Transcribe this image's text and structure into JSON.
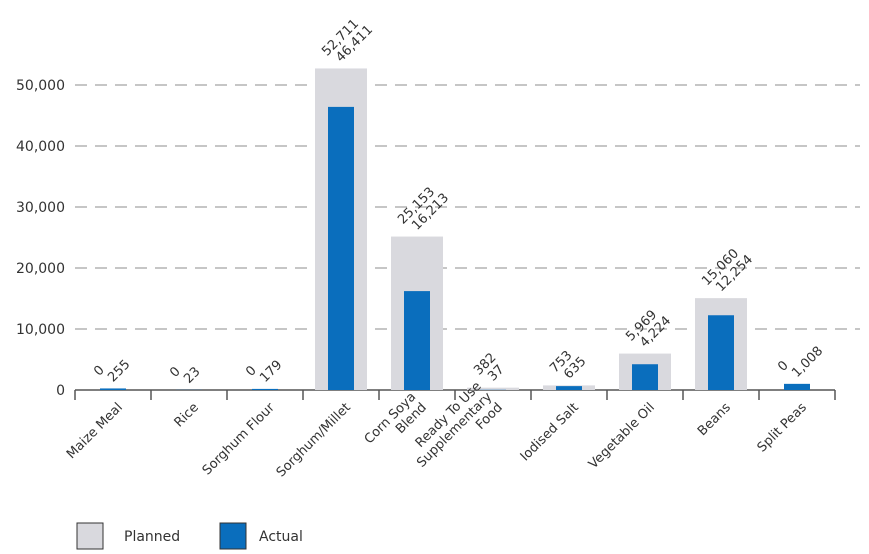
{
  "chart_data": {
    "type": "bar",
    "title": "",
    "xlabel": "",
    "ylabel": "",
    "ylim": [
      0,
      55000
    ],
    "yticks": [
      0,
      10000,
      20000,
      30000,
      40000,
      50000
    ],
    "ytick_labels": [
      "0",
      "10,000",
      "20,000",
      "30,000",
      "40,000",
      "50,000"
    ],
    "grid": "horizontal dashed",
    "legend_position": "bottom-left",
    "categories": [
      "Maize Meal",
      "Rice",
      "Sorghum Flour",
      "Sorghum/Millet",
      "Corn Soya Blend",
      "Ready To Use Supplementary Food",
      "Iodised Salt",
      "Vegetable Oil",
      "Beans",
      "Split Peas"
    ],
    "category_lines": [
      [
        "Maize Meal"
      ],
      [
        "Rice"
      ],
      [
        "Sorghum Flour"
      ],
      [
        "Sorghum/Millet"
      ],
      [
        "Corn Soya",
        "Blend"
      ],
      [
        "Ready To Use",
        "Supplementary",
        "Food"
      ],
      [
        "Iodised Salt"
      ],
      [
        "Vegetable Oil"
      ],
      [
        "Beans"
      ],
      [
        "Split Peas"
      ]
    ],
    "series": [
      {
        "name": "Planned",
        "color": "#d9d9de",
        "values": [
          0,
          0,
          0,
          52711,
          25153,
          382,
          753,
          5969,
          15060,
          0
        ],
        "labels": [
          "0",
          "0",
          "0",
          "52,711",
          "25,153",
          "382",
          "753",
          "5,969",
          "15,060",
          "0"
        ]
      },
      {
        "name": "Actual",
        "color": "#0a6ebd",
        "values": [
          255,
          23,
          179,
          46411,
          16213,
          37,
          635,
          4224,
          12254,
          1008
        ],
        "labels": [
          "255",
          "23",
          "179",
          "46,411",
          "16,213",
          "37",
          "635",
          "4,224",
          "12,254",
          "1,008"
        ]
      }
    ]
  }
}
